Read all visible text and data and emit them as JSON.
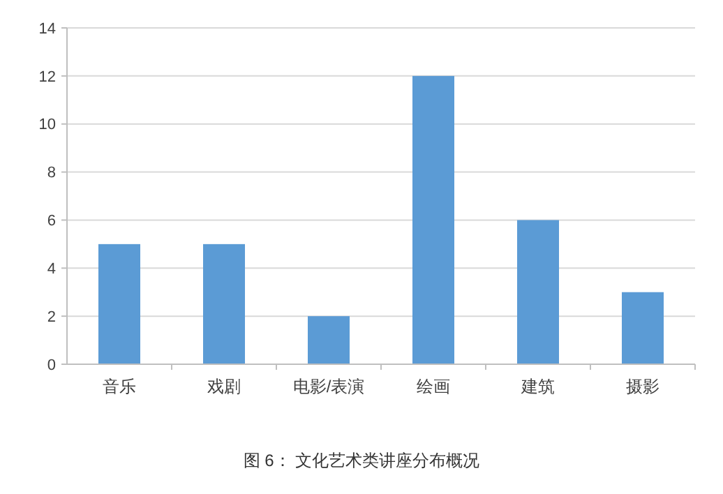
{
  "chart_data": {
    "type": "bar",
    "title": "图 6： 文化艺术类讲座分布概况",
    "categories": [
      "音乐",
      "戏剧",
      "电影/表演",
      "绘画",
      "建筑",
      "摄影"
    ],
    "values": [
      5,
      5,
      2,
      12,
      6,
      3
    ],
    "color": "#5b9bd5",
    "ylim": [
      0,
      14
    ],
    "yticks": [
      0,
      2,
      4,
      6,
      8,
      10,
      12,
      14
    ],
    "grid": "y"
  }
}
